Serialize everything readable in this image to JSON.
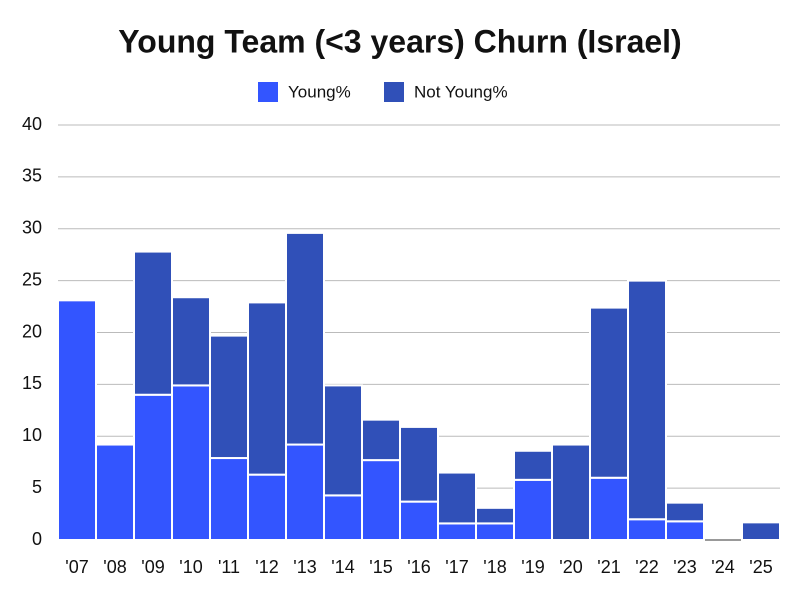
{
  "chart_data": {
    "type": "stacked_bar",
    "title": "Young Team (<3 years) Churn (Israel)",
    "categories": [
      "'07",
      "'08",
      "'09",
      "'10",
      "'11",
      "'12",
      "'13",
      "'14",
      "'15",
      "'16",
      "'17",
      "'18",
      "'19",
      "'20",
      "'21",
      "'22",
      "'23",
      "'24",
      "'25"
    ],
    "series": [
      {
        "name": "Young%",
        "color": "#3355ff",
        "values": [
          23.1,
          9.2,
          14.0,
          14.9,
          7.9,
          6.3,
          9.2,
          4.3,
          7.7,
          3.7,
          1.6,
          1.6,
          5.8,
          0,
          6.0,
          2.0,
          1.8,
          0,
          0
        ]
      },
      {
        "name": "Not Young%",
        "color": "#3050b8",
        "values": [
          0,
          0,
          13.8,
          8.5,
          11.8,
          16.6,
          20.4,
          10.6,
          3.9,
          7.2,
          4.9,
          1.5,
          2.8,
          9.2,
          16.4,
          23.0,
          1.8,
          0,
          1.7
        ]
      }
    ],
    "ylim": [
      0,
      40
    ],
    "yticks": [
      0,
      5,
      10,
      15,
      20,
      25,
      30,
      35,
      40
    ],
    "grid": true
  }
}
